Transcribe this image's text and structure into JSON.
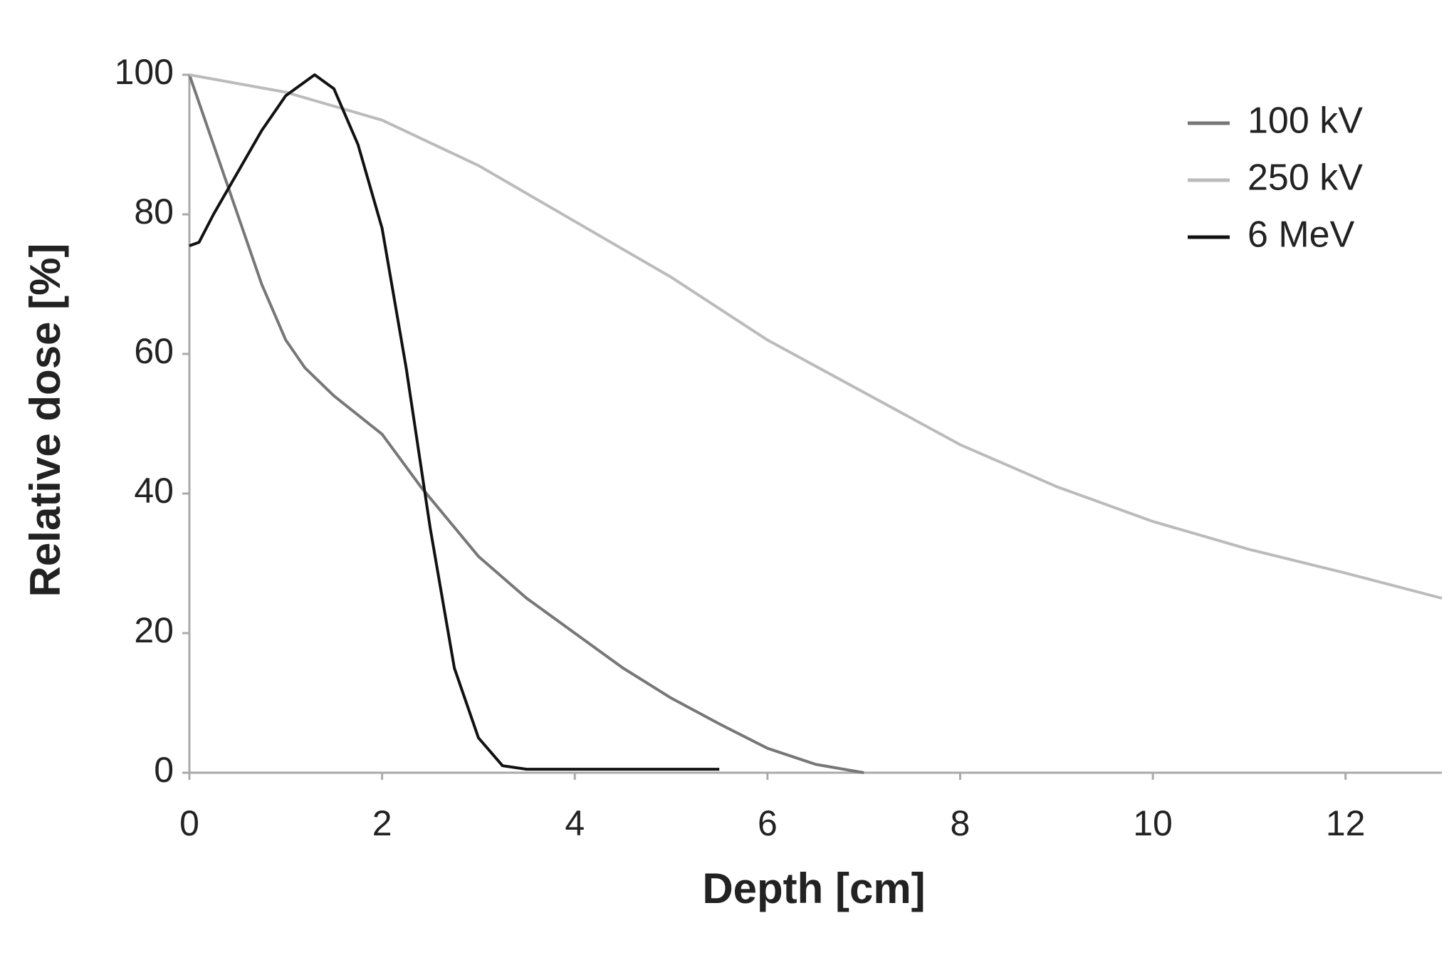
{
  "chart_data": {
    "type": "line",
    "xlabel": "Depth [cm]",
    "ylabel": "Relative dose [%]",
    "xlim": [
      0,
      13
    ],
    "xticks": [
      0,
      2,
      4,
      6,
      8,
      10,
      12
    ],
    "ylim": [
      0,
      100
    ],
    "yticks": [
      0,
      20,
      40,
      60,
      80,
      100
    ],
    "grid": false,
    "legend": "top-right",
    "series": [
      {
        "name": "100 kV",
        "color": "#777777",
        "x": [
          0,
          0.25,
          0.5,
          0.75,
          1,
          1.2,
          1.5,
          2,
          2.4,
          3,
          3.5,
          4,
          4.5,
          5,
          5.5,
          6,
          6.5,
          7
        ],
        "values": [
          100,
          90,
          80,
          70,
          62,
          58,
          54,
          48.5,
          41,
          31,
          25,
          20,
          15,
          10.7,
          7,
          3.5,
          1.2,
          0
        ]
      },
      {
        "name": "250 kV",
        "color": "#bbbbbb",
        "x": [
          0,
          1,
          2,
          3,
          4,
          5,
          6,
          7,
          8,
          9,
          10,
          11,
          12,
          13
        ],
        "values": [
          100,
          97.5,
          93.5,
          87,
          79,
          71,
          62,
          54.5,
          47,
          41,
          36,
          32,
          28.6,
          25
        ]
      },
      {
        "name": "6 MeV",
        "color": "#111111",
        "x": [
          0,
          0.1,
          0.25,
          0.5,
          0.75,
          1,
          1.3,
          1.5,
          1.75,
          2,
          2.25,
          2.5,
          2.75,
          3,
          3.25,
          3.5,
          4,
          5,
          5.5
        ],
        "values": [
          75.5,
          76,
          80,
          86,
          92,
          97,
          100,
          98,
          90,
          78,
          58,
          35,
          15,
          5,
          1,
          0.5,
          0.5,
          0.5,
          0.5
        ]
      }
    ]
  }
}
